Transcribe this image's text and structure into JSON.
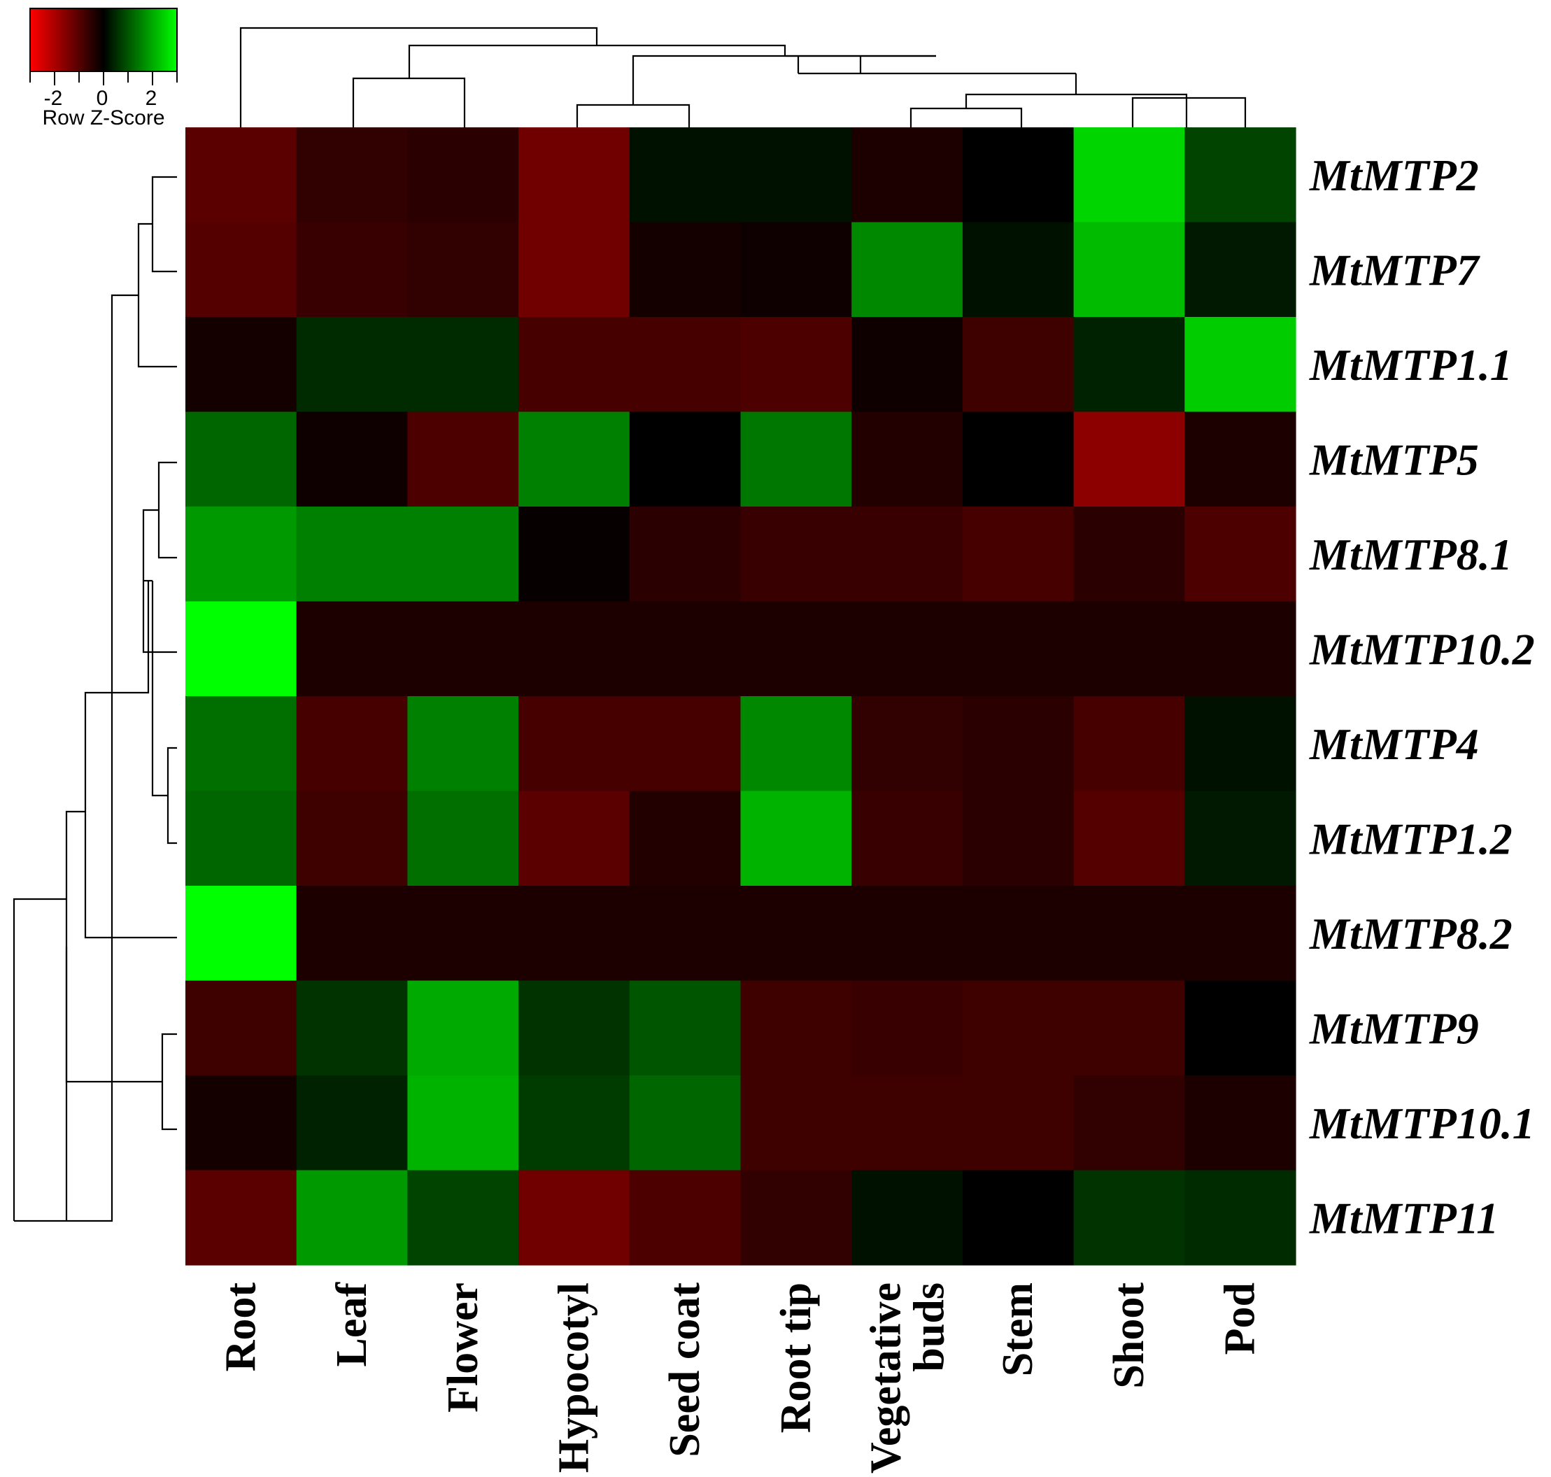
{
  "chart_data": {
    "type": "heatmap",
    "title": "",
    "xlabel": "",
    "ylabel": "",
    "color_key": {
      "title": "Row Z-Score",
      "ticks": [
        "-2",
        "0",
        "2"
      ],
      "range": [
        -3,
        3
      ],
      "low_color": "#ff0000",
      "mid_color": "#000000",
      "high_color": "#00ff00"
    },
    "columns": [
      "Root",
      "Leaf",
      "Flower",
      "Hypocotyl",
      "Seed coat",
      "Root tip",
      "Vegetative buds",
      "Stem",
      "Shoot",
      "Pod"
    ],
    "rows": [
      "MtMTP2",
      "MtMTP7",
      "MtMTP1.1",
      "MtMTP5",
      "MtMTP8.1",
      "MtMTP10.2",
      "MtMTP4",
      "MtMTP1.2",
      "MtMTP8.2",
      "MtMTP9",
      "MtMTP10.1",
      "MtMTP11"
    ],
    "values": [
      [
        -1.3,
        -0.7,
        -0.6,
        -1.6,
        0.2,
        0.2,
        -0.4,
        0.0,
        2.5,
        0.8
      ],
      [
        -1.2,
        -0.8,
        -0.7,
        -1.6,
        -0.3,
        -0.2,
        1.6,
        0.2,
        2.2,
        0.3
      ],
      [
        -0.3,
        0.5,
        0.5,
        -1.0,
        -1.0,
        -1.1,
        -0.2,
        -0.9,
        0.4,
        2.4
      ],
      [
        1.2,
        -0.2,
        -1.1,
        1.5,
        0.0,
        1.4,
        -0.5,
        0.0,
        -2.0,
        -0.4
      ],
      [
        1.8,
        1.5,
        1.5,
        -0.1,
        -0.6,
        -0.8,
        -0.8,
        -1.0,
        -0.6,
        -1.1
      ],
      [
        3.0,
        -0.4,
        -0.4,
        -0.4,
        -0.4,
        -0.4,
        -0.4,
        -0.4,
        -0.4,
        -0.4
      ],
      [
        1.3,
        -1.0,
        1.5,
        -1.0,
        -1.0,
        1.6,
        -0.7,
        -0.6,
        -1.0,
        0.2
      ],
      [
        1.2,
        -0.9,
        1.3,
        -1.3,
        -0.5,
        2.1,
        -0.8,
        -0.6,
        -1.2,
        0.3
      ],
      [
        3.0,
        -0.4,
        -0.4,
        -0.4,
        -0.4,
        -0.4,
        -0.4,
        -0.4,
        -0.4,
        -0.4
      ],
      [
        -0.9,
        0.6,
        2.0,
        0.6,
        1.0,
        -0.9,
        -0.8,
        -0.9,
        -0.9,
        0.0
      ],
      [
        -0.3,
        0.4,
        2.1,
        0.7,
        1.2,
        -0.9,
        -0.9,
        -0.9,
        -0.7,
        -0.4
      ],
      [
        -1.3,
        1.8,
        0.8,
        -1.6,
        -1.1,
        -0.7,
        0.2,
        0.0,
        0.6,
        0.5
      ]
    ],
    "grid": false,
    "legend": "top-left"
  },
  "row_labels_display": [
    "MtMTP2",
    "MtMTP7",
    "MtMTP1.1",
    "MtMTP5",
    "MtMTP8.1",
    "MtMTP10.2",
    "MtMTP4",
    "MtMTP1.2",
    "MtMTP8.2",
    "MtMTP9",
    "MtMTP10.1",
    "MtMTP11"
  ],
  "column_labels_display": [
    "Root",
    "Leaf",
    "Flower",
    "Hypocotyl",
    "Seed coat",
    "Root tip",
    "Vegetative buds",
    "Stem",
    "Shoot",
    "Pod"
  ]
}
